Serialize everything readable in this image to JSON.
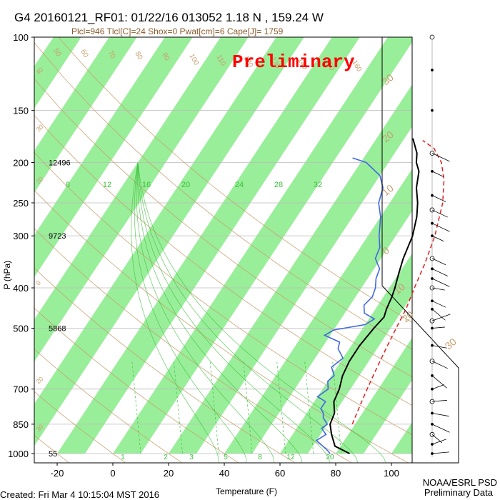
{
  "header": {
    "title": "G4 20160121_RF01: 01/22/16 013052   1.18 N , 159.24 W",
    "subtitle": "Plcl=946 Tlcl[C]=24 Shox=0 Pwat[cm]=6 Cape[J]= 1759"
  },
  "watermark": "Preliminary",
  "footer": {
    "created": "Created: Fri Mar  4 10:15:04 MST 2016",
    "credit_line1": "NOAA/ESRL PSD",
    "credit_line2": "Preliminary Data"
  },
  "colors": {
    "background": "#ffffff",
    "band": "#99ee99",
    "temperature": "#000000",
    "dewpoint": "#4169e1",
    "parcel": "#e02020",
    "dry_adiabat": "#c8a070",
    "moist_adiabat": "#3cbf3c",
    "mixing_ratio": "#3cbf3c",
    "watermark": "#ff0000",
    "subtitle": "#8b5a2b"
  },
  "chart_data": {
    "type": "line",
    "title": "G4 20160121_RF01: 01/22/16 013052   1.18 N , 159.24 W",
    "xlabel": "Temperature (F)",
    "ylabel": "P (hPa)",
    "xlim": [
      -30,
      112
    ],
    "ylim": [
      1050,
      100
    ],
    "y_scale": "log",
    "x_ticks": [
      -20,
      0,
      20,
      40,
      60,
      80,
      100
    ],
    "y_ticks": [
      100,
      150,
      200,
      250,
      300,
      400,
      500,
      700,
      850,
      1000
    ],
    "heights": [
      {
        "p": 200,
        "label": "12496"
      },
      {
        "p": 300,
        "label": "9723"
      },
      {
        "p": 500,
        "label": "5868"
      },
      {
        "p": 1000,
        "label": "55"
      }
    ],
    "isotherm_labels": [
      {
        "t": 50,
        "label": "50"
      },
      {
        "t": 60,
        "label": "60"
      },
      {
        "t": 70,
        "label": "70"
      },
      {
        "t": 80,
        "label": "80"
      },
      {
        "t": 90,
        "label": "90"
      },
      {
        "t": 100,
        "label": "100"
      },
      {
        "t": 110,
        "label": "110"
      },
      {
        "t": 120,
        "label": "120"
      },
      {
        "t": 130,
        "label": "130"
      },
      {
        "t": 140,
        "label": "140"
      },
      {
        "t": 150,
        "label": "150"
      },
      {
        "t": 160,
        "label": "160"
      }
    ],
    "mixing_ratio_labels_top": [
      "8",
      "12",
      "16",
      "20",
      "24",
      "28",
      "32"
    ],
    "mixing_ratio_labels_bottom": [
      "1",
      "2",
      "3",
      "5",
      "8",
      "12",
      "20"
    ],
    "right_edge_labels": [
      "30",
      "20",
      "10",
      "0",
      "10",
      "20",
      "30"
    ],
    "left_edge_labels": [
      "40",
      "30",
      "20",
      "0",
      "20",
      "30"
    ],
    "series": [
      {
        "key": "temperature",
        "points": [
          [
            85,
            1000
          ],
          [
            78,
            960
          ],
          [
            74,
            900
          ],
          [
            71,
            850
          ],
          [
            70,
            800
          ],
          [
            67,
            750
          ],
          [
            66,
            700
          ],
          [
            64,
            650
          ],
          [
            63,
            600
          ],
          [
            63,
            550
          ],
          [
            64,
            500
          ],
          [
            65,
            470
          ],
          [
            64,
            450
          ],
          [
            63,
            420
          ],
          [
            62,
            400
          ],
          [
            60,
            370
          ],
          [
            58,
            340
          ],
          [
            56,
            300
          ],
          [
            53,
            270
          ],
          [
            50,
            250
          ],
          [
            46,
            230
          ],
          [
            43,
            210
          ],
          [
            40,
            200
          ],
          [
            38,
            190
          ],
          [
            33,
            175
          ]
        ]
      },
      {
        "key": "dewpoint",
        "points": [
          [
            78,
            1000
          ],
          [
            76,
            980
          ],
          [
            70,
            930
          ],
          [
            72,
            900
          ],
          [
            69,
            870
          ],
          [
            70,
            850
          ],
          [
            67,
            820
          ],
          [
            66,
            800
          ],
          [
            64,
            780
          ],
          [
            64,
            750
          ],
          [
            60,
            730
          ],
          [
            62,
            700
          ],
          [
            60,
            670
          ],
          [
            61,
            650
          ],
          [
            58,
            620
          ],
          [
            60,
            590
          ],
          [
            56,
            560
          ],
          [
            55,
            540
          ],
          [
            48,
            520
          ],
          [
            50,
            505
          ],
          [
            60,
            490
          ],
          [
            62,
            475
          ],
          [
            57,
            460
          ],
          [
            56,
            450
          ],
          [
            55,
            440
          ],
          [
            56,
            420
          ],
          [
            55,
            400
          ],
          [
            53,
            380
          ],
          [
            52,
            360
          ],
          [
            48,
            340
          ],
          [
            47,
            320
          ],
          [
            44,
            300
          ],
          [
            40,
            270
          ],
          [
            36,
            250
          ],
          [
            34,
            230
          ],
          [
            30,
            215
          ],
          [
            22,
            200
          ],
          [
            16,
            195
          ]
        ]
      },
      {
        "key": "parcel",
        "points": [
          [
            79,
            850
          ],
          [
            78,
            800
          ],
          [
            77,
            750
          ],
          [
            76,
            700
          ],
          [
            75,
            650
          ],
          [
            74,
            600
          ],
          [
            73,
            550
          ],
          [
            72,
            500
          ],
          [
            71,
            450
          ],
          [
            69,
            400
          ],
          [
            67,
            350
          ],
          [
            64,
            300
          ],
          [
            59,
            250
          ],
          [
            54,
            220
          ],
          [
            49,
            200
          ],
          [
            43,
            185
          ],
          [
            37,
            177
          ]
        ]
      }
    ],
    "wind_barbs": {
      "levels_hpa": [
        100,
        120,
        150,
        190,
        210,
        240,
        260,
        280,
        300,
        340,
        360,
        380,
        400,
        430,
        450,
        480,
        500,
        550,
        600,
        650,
        700,
        750,
        800,
        850,
        900,
        950,
        1000
      ]
    }
  }
}
